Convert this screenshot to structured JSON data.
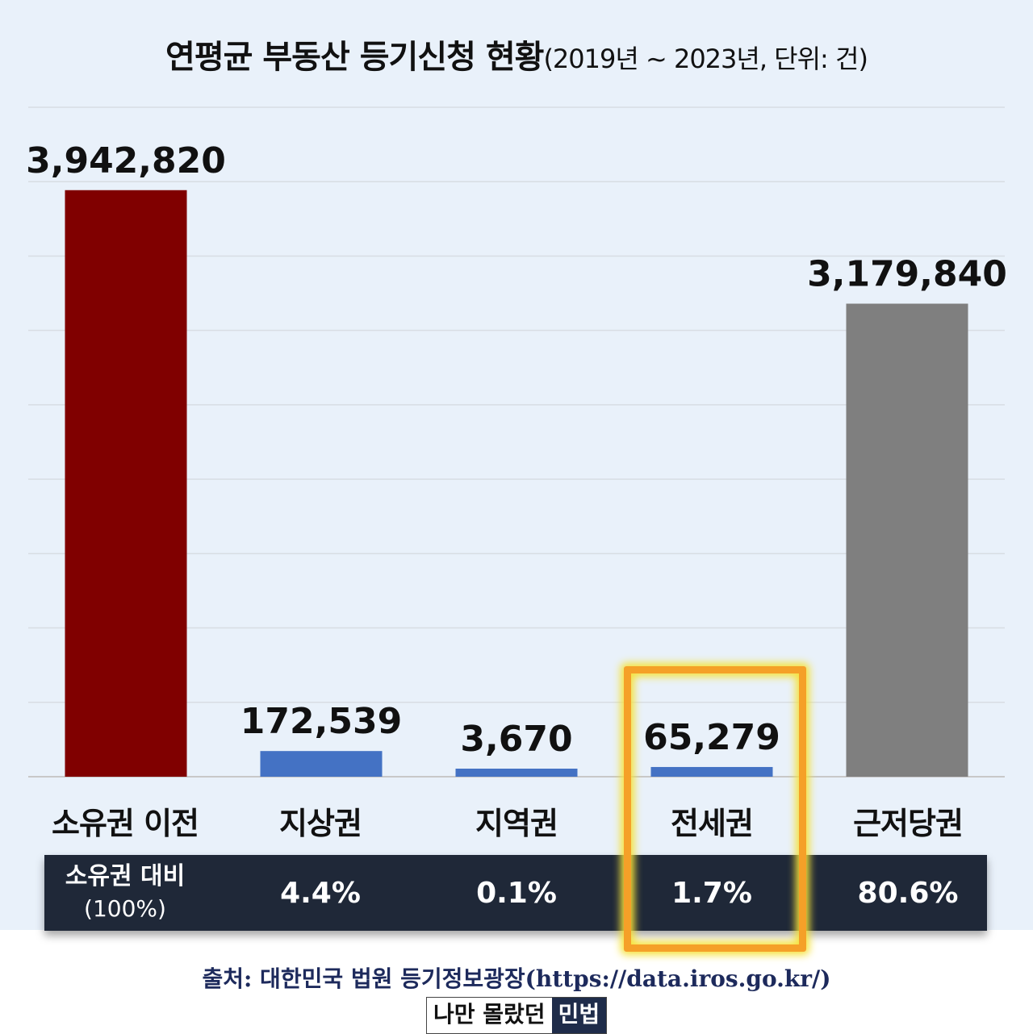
{
  "chart_data": {
    "type": "bar",
    "title": "연평균 부동산 등기신청 현황",
    "subtitle": "(2019년 ~ 2023년, 단위: 건)",
    "categories": [
      "소유권 이전",
      "지상권",
      "지역권",
      "전세권",
      "근저당권"
    ],
    "values": [
      3942820,
      172539,
      3670,
      65279,
      3179840
    ],
    "value_labels": [
      "3,942,820",
      "172,539",
      "3,670",
      "65,279",
      "3,179,840"
    ],
    "bar_colors": [
      "#800000",
      "#4472c4",
      "#4472c4",
      "#4472c4",
      "#7f7f7f"
    ],
    "ylim": [
      0,
      4500000
    ],
    "grid": true,
    "highlight_category": "전세권",
    "highlight_color": "#f5a028"
  },
  "ratio_table": {
    "header": "소유권 대비",
    "header_sub": "(100%)",
    "values": [
      "4.4%",
      "0.1%",
      "1.7%",
      "80.6%"
    ]
  },
  "source": "출처: 대한민국 법원 등기정보광장(https://data.iros.go.kr/)",
  "brand": {
    "part1": "나만 몰랐던",
    "part2": "민법"
  }
}
